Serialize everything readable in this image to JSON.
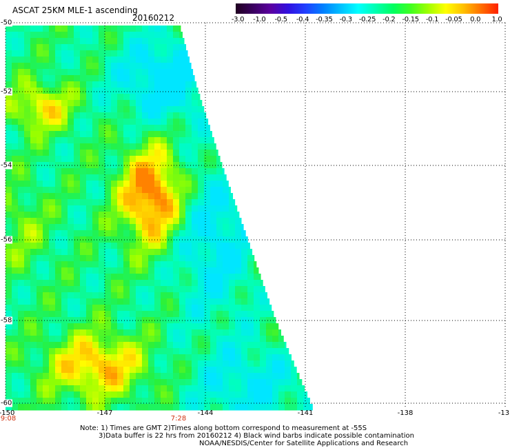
{
  "header": {
    "title": "ASCAT 25KM MLE-1 ascending",
    "date": "20160212"
  },
  "colorbar": {
    "labels": [
      "-3.0",
      "-1.0",
      "-0.5",
      "-0.4",
      "-0.35",
      "-0.3",
      "-0.25",
      "-0.2",
      "-0.15",
      "-0.1",
      "-0.05",
      "0.0",
      "1.0"
    ],
    "colors": [
      "#200020",
      "#5a00a0",
      "#2020ff",
      "#0060ff",
      "#00a0ff",
      "#00e0ff",
      "#00ffd0",
      "#00ff80",
      "#40ff20",
      "#a0ff00",
      "#ffff00",
      "#ffa000",
      "#ff2000"
    ]
  },
  "axes": {
    "y_ticks": [
      "-50",
      "-52",
      "-54",
      "-56",
      "-58",
      "-60"
    ],
    "x_ticks": [
      "-150",
      "-147",
      "-144",
      "-141",
      "-138",
      "-13"
    ],
    "times": [
      "9:08",
      "7:28"
    ]
  },
  "notes": {
    "line1": "Note: 1) Times are GMT 2)Times along bottom correspond to measurement at -55S",
    "line2": "3)Data buffer is 22 hrs from 20160212 4) Black wind barbs indicate possible contamination",
    "line3": "NOAA/NESDIS/Center for Satellite Applications and Research"
  }
}
